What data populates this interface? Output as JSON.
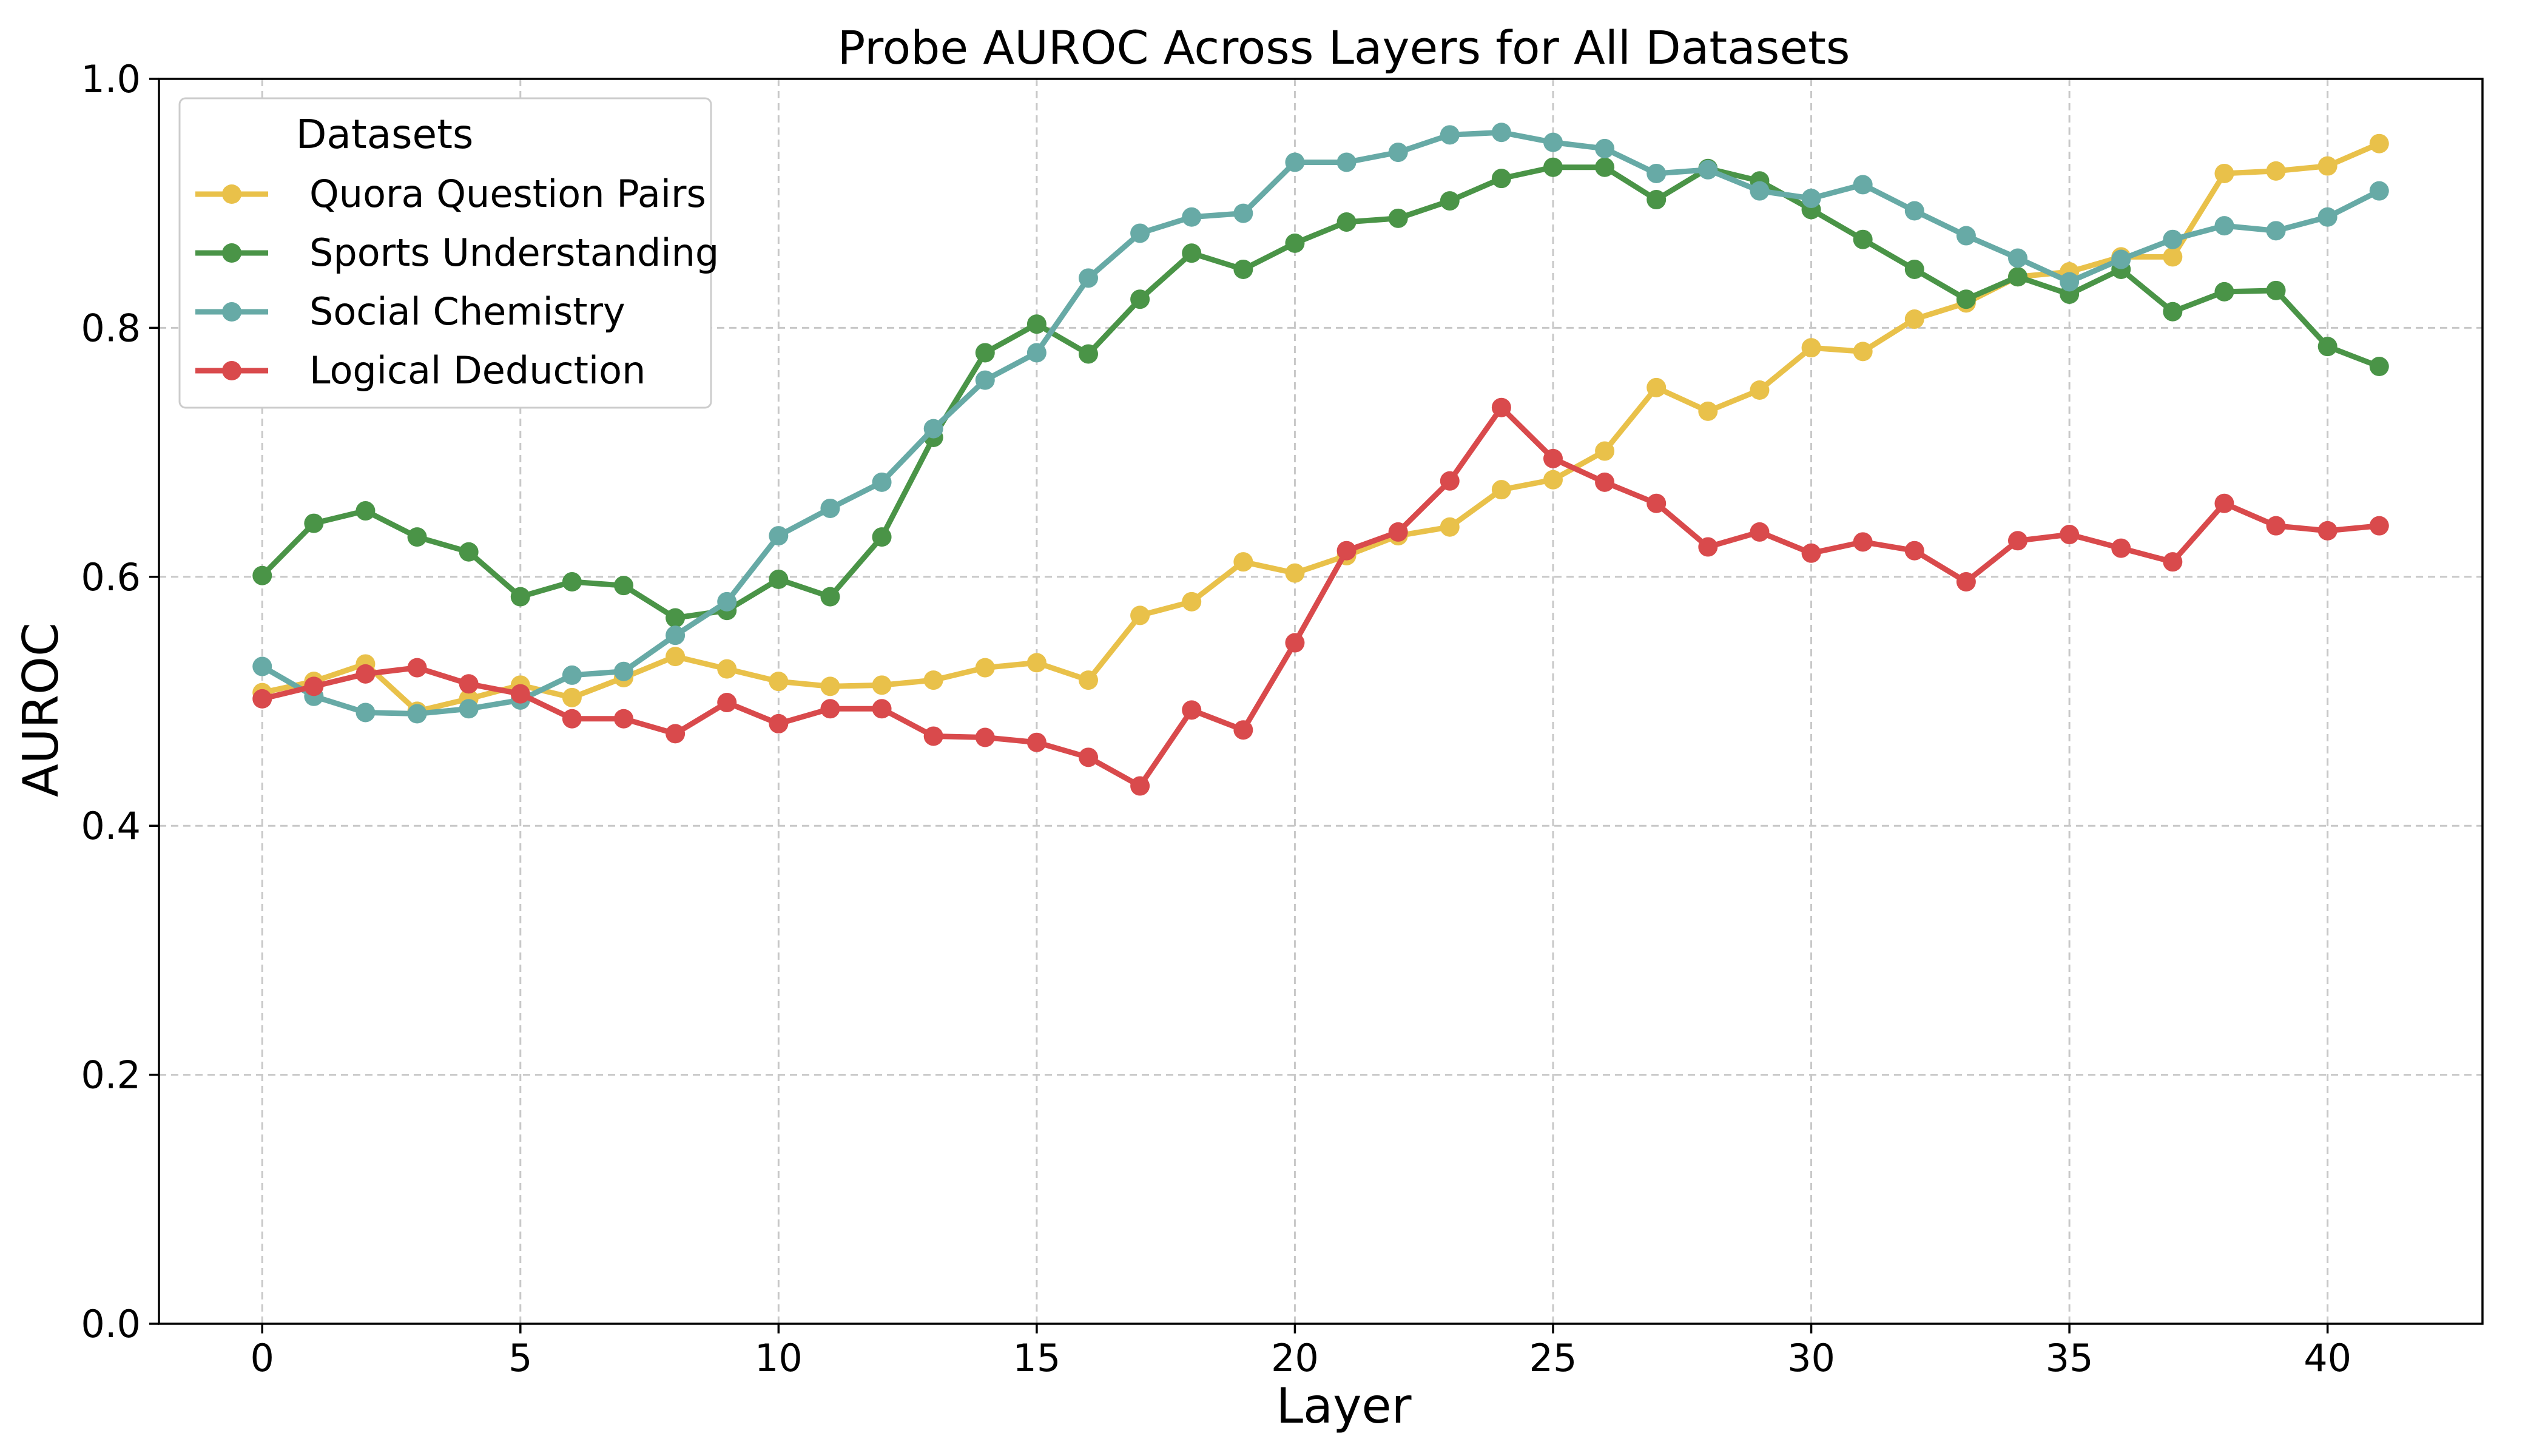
{
  "chart_data": {
    "type": "line",
    "title": "Probe AUROC Across Layers for All Datasets",
    "xlabel": "Layer",
    "ylabel": "AUROC",
    "xlim": [
      -2,
      43
    ],
    "ylim": [
      0.0,
      1.0
    ],
    "xticks": [
      0,
      5,
      10,
      15,
      20,
      25,
      30,
      35,
      40
    ],
    "yticks": [
      0.0,
      0.2,
      0.4,
      0.6,
      0.8,
      1.0
    ],
    "grid": true,
    "legend": {
      "title": "Datasets",
      "placement": "top-left"
    },
    "x": [
      0,
      1,
      2,
      3,
      4,
      5,
      6,
      7,
      8,
      9,
      10,
      11,
      12,
      13,
      14,
      15,
      16,
      17,
      18,
      19,
      20,
      21,
      22,
      23,
      24,
      25,
      26,
      27,
      28,
      29,
      30,
      31,
      32,
      33,
      34,
      35,
      36,
      37,
      38,
      39,
      40,
      41
    ],
    "series": [
      {
        "name": "Quora Question Pairs",
        "color": "#e9c14a",
        "values": [
          0.507,
          0.516,
          0.53,
          0.492,
          0.502,
          0.513,
          0.503,
          0.519,
          0.536,
          0.526,
          0.516,
          0.512,
          0.513,
          0.517,
          0.527,
          0.531,
          0.517,
          0.569,
          0.58,
          0.612,
          0.603,
          0.617,
          0.633,
          0.64,
          0.67,
          0.678,
          0.701,
          0.752,
          0.733,
          0.75,
          0.784,
          0.781,
          0.807,
          0.82,
          0.841,
          0.845,
          0.857,
          0.857,
          0.924,
          0.926,
          0.93,
          0.948
        ]
      },
      {
        "name": "Sports Understanding",
        "color": "#4a9447",
        "values": [
          0.601,
          0.643,
          0.653,
          0.632,
          0.62,
          0.584,
          0.596,
          0.593,
          0.567,
          0.573,
          0.598,
          0.584,
          0.632,
          0.712,
          0.78,
          0.803,
          0.779,
          0.823,
          0.86,
          0.847,
          0.868,
          0.885,
          0.888,
          0.902,
          0.92,
          0.929,
          0.929,
          0.903,
          0.928,
          0.918,
          0.895,
          0.871,
          0.847,
          0.823,
          0.841,
          0.827,
          0.847,
          0.813,
          0.829,
          0.83,
          0.785,
          0.769
        ]
      },
      {
        "name": "Social Chemistry",
        "color": "#67aaa6",
        "values": [
          0.528,
          0.504,
          0.491,
          0.49,
          0.494,
          0.501,
          0.521,
          0.524,
          0.553,
          0.58,
          0.633,
          0.655,
          0.676,
          0.719,
          0.758,
          0.78,
          0.84,
          0.876,
          0.889,
          0.892,
          0.933,
          0.933,
          0.941,
          0.955,
          0.957,
          0.949,
          0.944,
          0.924,
          0.927,
          0.91,
          0.904,
          0.915,
          0.894,
          0.874,
          0.856,
          0.837,
          0.855,
          0.871,
          0.882,
          0.878,
          0.889,
          0.91
        ]
      },
      {
        "name": "Logical Deduction",
        "color": "#d94a4c",
        "values": [
          0.502,
          0.512,
          0.522,
          0.527,
          0.514,
          0.506,
          0.486,
          0.486,
          0.474,
          0.499,
          0.482,
          0.494,
          0.494,
          0.472,
          0.471,
          0.467,
          0.455,
          0.432,
          0.493,
          0.477,
          0.547,
          0.621,
          0.636,
          0.677,
          0.736,
          0.695,
          0.676,
          0.659,
          0.624,
          0.636,
          0.619,
          0.628,
          0.621,
          0.596,
          0.629,
          0.634,
          0.623,
          0.612,
          0.659,
          0.641,
          0.637,
          0.641
        ]
      }
    ]
  }
}
